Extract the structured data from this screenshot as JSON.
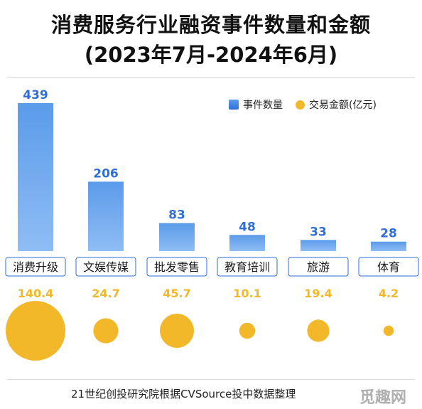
{
  "title_line1": "消费服务行业融资事件数量和金额",
  "title_line2": "(2023年7月-2024年6月)",
  "legend": {
    "count_label": "事件数量",
    "amount_label": "交易金额(亿元)"
  },
  "colors": {
    "bar_top": "#5b9bea",
    "bar_bottom": "#8fbdf4",
    "bar_label": "#2f6fd8",
    "bubble": "#f2b829",
    "category_box_border": "#2f6fd8"
  },
  "chart_data": {
    "type": "bar",
    "categories": [
      "消费升级",
      "文娱传媒",
      "批发零售",
      "教育培训",
      "旅游",
      "体育"
    ],
    "series": [
      {
        "name": "事件数量",
        "values": [
          439,
          206,
          83,
          48,
          33,
          28
        ]
      },
      {
        "name": "交易金额(亿元)",
        "values": [
          140.4,
          24.7,
          45.7,
          10.1,
          19.4,
          4.2
        ]
      }
    ],
    "value_labels_count": [
      "439",
      "206",
      "83",
      "48",
      "33",
      "28"
    ],
    "value_labels_amount": [
      "140.4",
      "24.7",
      "45.7",
      "10.1",
      "19.4",
      "4.2"
    ],
    "ylim": [
      0,
      439
    ]
  },
  "source": "21世纪创投研究院根据CVSource投中数据整理",
  "watermark": "觅趣网"
}
